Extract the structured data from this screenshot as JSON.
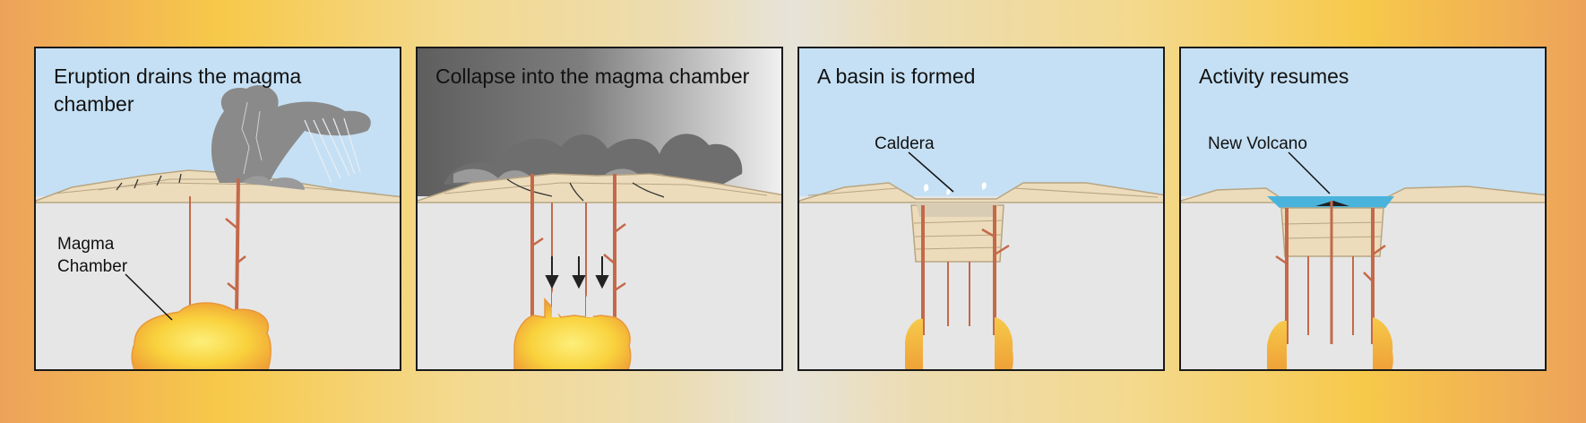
{
  "panels": [
    {
      "title": "Eruption drains the magma chamber",
      "label": "Magma\nChamber"
    },
    {
      "title": "Collapse into the magma chamber"
    },
    {
      "title": "A basin is formed",
      "label": "Caldera"
    },
    {
      "title": "Activity resumes",
      "label": "New Volcano"
    }
  ],
  "colors": {
    "sky": "#c5e0f4",
    "ground": "#e6e6e6",
    "rock": "#ecdcbc",
    "rock_line": "#b8a582",
    "magma_bright": "#fde14a",
    "magma_edge": "#f2a93b",
    "conduit": "#c4694a",
    "smoke": "#8a8a8a",
    "lake": "#4ab3dc",
    "frame_orange": "#eda25a",
    "frame_yellow": "#f7c94a"
  }
}
